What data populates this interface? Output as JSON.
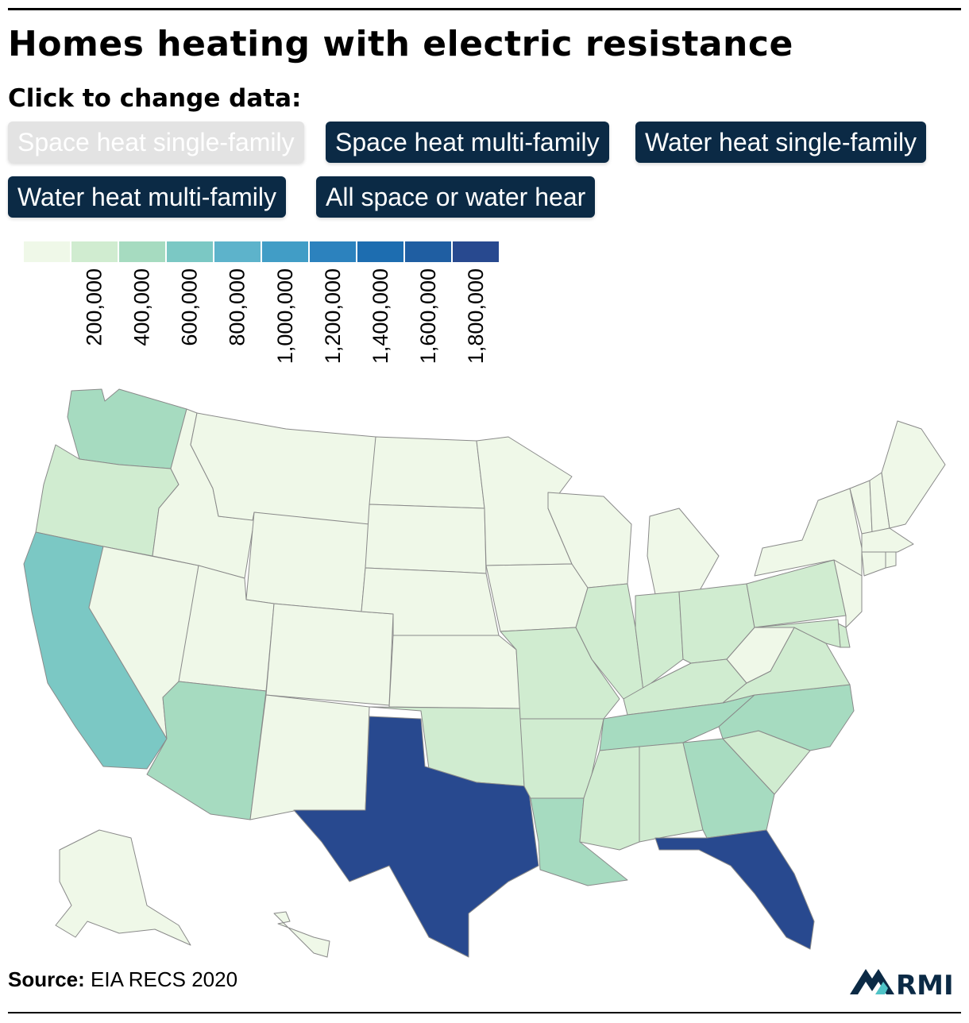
{
  "title": "Homes heating with electric resistance",
  "subtitle": "Click to change data:",
  "buttons": [
    {
      "label": "Space heat single-family",
      "active": true
    },
    {
      "label": "Space heat multi-family",
      "active": false
    },
    {
      "label": "Water heat single-family",
      "active": false
    },
    {
      "label": "Water heat multi-family",
      "active": false
    },
    {
      "label": "All space or water hear",
      "active": false
    }
  ],
  "legend": {
    "colors": [
      "#eff8e8",
      "#d0ecd0",
      "#a6dbc0",
      "#7bc8c4",
      "#5db3cb",
      "#419dc6",
      "#2c82be",
      "#1d6db0",
      "#1f5ea2",
      "#28498f"
    ],
    "ticks": [
      "200,000",
      "400,000",
      "600,000",
      "800,000",
      "1,000,000",
      "1,200,000",
      "1,400,000",
      "1,600,000",
      "1,800,000"
    ]
  },
  "source": {
    "label": "Source:",
    "text": "EIA RECS 2020"
  },
  "logo": {
    "text": "RMI",
    "icon": "rmi-logo-icon"
  },
  "map_data": {
    "variable": "Space heat single-family",
    "classes": {
      "WA": 3,
      "OR": 2,
      "CA": 4,
      "NV": 1,
      "ID": 1,
      "MT": 1,
      "WY": 1,
      "UT": 1,
      "AZ": 3,
      "CO": 1,
      "NM": 1,
      "ND": 1,
      "SD": 1,
      "NE": 1,
      "KS": 1,
      "OK": 2,
      "TX": 10,
      "MN": 1,
      "IA": 1,
      "MO": 2,
      "AR": 2,
      "LA": 3,
      "WI": 1,
      "IL": 2,
      "MI": 1,
      "IN": 2,
      "OH": 2,
      "KY": 2,
      "TN": 3,
      "MS": 2,
      "AL": 2,
      "GA": 3,
      "FL": 10,
      "SC": 2,
      "NC": 3,
      "VA": 2,
      "WV": 1,
      "PA": 2,
      "NY": 1,
      "VT": 1,
      "NH": 1,
      "ME": 1,
      "MA": 1,
      "RI": 1,
      "CT": 1,
      "NJ": 1,
      "DE": 2,
      "MD": 2,
      "AK": 1,
      "HI": 1
    }
  }
}
